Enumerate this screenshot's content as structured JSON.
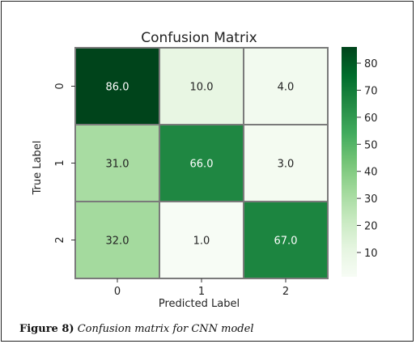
{
  "chart_data": {
    "type": "heatmap",
    "title": "Confusion Matrix",
    "xlabel": "Predicted Label",
    "ylabel": "True Label",
    "x_categories": [
      "0",
      "1",
      "2"
    ],
    "y_categories": [
      "0",
      "1",
      "2"
    ],
    "matrix": [
      [
        86.0,
        10.0,
        4.0
      ],
      [
        31.0,
        66.0,
        3.0
      ],
      [
        32.0,
        1.0,
        67.0
      ]
    ],
    "cell_labels": [
      [
        "86.0",
        "10.0",
        "4.0"
      ],
      [
        "31.0",
        "66.0",
        "3.0"
      ],
      [
        "32.0",
        "1.0",
        "67.0"
      ]
    ],
    "colormap": "Greens",
    "colorbar": {
      "range": [
        1,
        86
      ],
      "ticks": [
        10,
        20,
        30,
        40,
        50,
        60,
        70,
        80
      ],
      "tick_labels": [
        "10",
        "20",
        "30",
        "40",
        "50",
        "60",
        "70",
        "80"
      ],
      "low_color": "#f7fcf5",
      "high_color": "#00441b"
    }
  },
  "caption": {
    "label": "Figure 8)",
    "text": "Confusion matrix for CNN model"
  }
}
